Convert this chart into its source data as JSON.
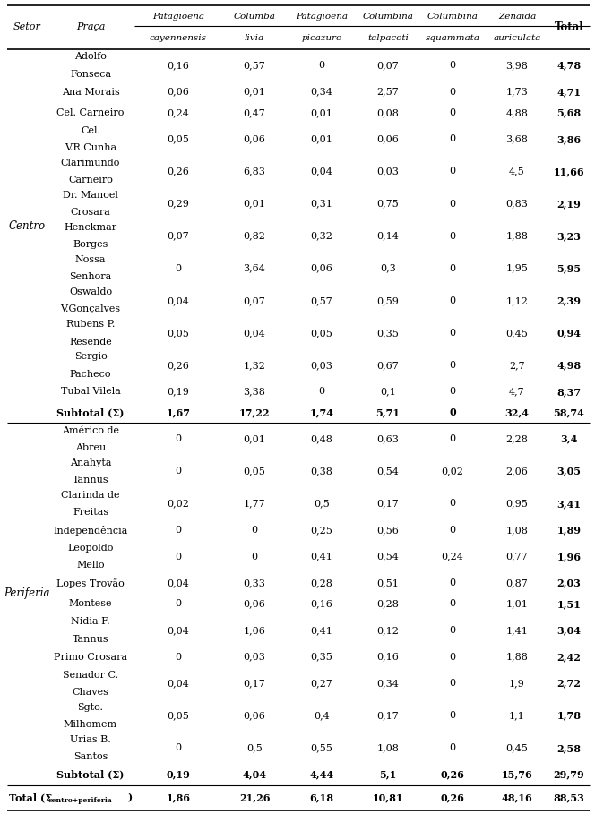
{
  "col_headers_line1": [
    "",
    "",
    "Patagioena",
    "Columba",
    "Patagioena",
    "Columbina",
    "Columbina",
    "Zenaida",
    "Total"
  ],
  "col_headers_line2": [
    "",
    "",
    "cayennensis",
    "livia",
    "picazuro",
    "talpacoti",
    "squammata",
    "auriculata",
    ""
  ],
  "col_headers_top": [
    "Setor",
    "Praça",
    "",
    "",
    "",
    "",
    "",
    "",
    ""
  ],
  "rows": [
    {
      "setor": "",
      "praca_lines": [
        "Adolfo",
        "Fonseca"
      ],
      "vals": [
        "0,16",
        "0,57",
        "0",
        "0,07",
        "0",
        "3,98",
        "4,78"
      ],
      "type": "data"
    },
    {
      "setor": "",
      "praca_lines": [
        "Ana Morais"
      ],
      "vals": [
        "0,06",
        "0,01",
        "0,34",
        "2,57",
        "0",
        "1,73",
        "4,71"
      ],
      "type": "data"
    },
    {
      "setor": "",
      "praca_lines": [
        "Cel. Carneiro"
      ],
      "vals": [
        "0,24",
        "0,47",
        "0,01",
        "0,08",
        "0",
        "4,88",
        "5,68"
      ],
      "type": "data"
    },
    {
      "setor": "",
      "praca_lines": [
        "Cel.",
        "V.R.Cunha"
      ],
      "vals": [
        "0,05",
        "0,06",
        "0,01",
        "0,06",
        "0",
        "3,68",
        "3,86"
      ],
      "type": "data"
    },
    {
      "setor": "",
      "praca_lines": [
        "Clarimundo",
        "Carneiro"
      ],
      "vals": [
        "0,26",
        "6,83",
        "0,04",
        "0,03",
        "0",
        "4,5",
        "11,66"
      ],
      "type": "data"
    },
    {
      "setor": "",
      "praca_lines": [
        "Dr. Manoel",
        "Crosara"
      ],
      "vals": [
        "0,29",
        "0,01",
        "0,31",
        "0,75",
        "0",
        "0,83",
        "2,19"
      ],
      "type": "data"
    },
    {
      "setor": "Centro",
      "praca_lines": [
        "Henckmar",
        "Borges"
      ],
      "vals": [
        "0,07",
        "0,82",
        "0,32",
        "0,14",
        "0",
        "1,88",
        "3,23"
      ],
      "type": "data"
    },
    {
      "setor": "",
      "praca_lines": [
        "Nossa",
        "Senhora"
      ],
      "vals": [
        "0",
        "3,64",
        "0,06",
        "0,3",
        "0",
        "1,95",
        "5,95"
      ],
      "type": "data"
    },
    {
      "setor": "",
      "praca_lines": [
        "Oswaldo",
        "V.Gonçalves"
      ],
      "vals": [
        "0,04",
        "0,07",
        "0,57",
        "0,59",
        "0",
        "1,12",
        "2,39"
      ],
      "type": "data"
    },
    {
      "setor": "",
      "praca_lines": [
        "Rubens P.",
        "Resende"
      ],
      "vals": [
        "0,05",
        "0,04",
        "0,05",
        "0,35",
        "0",
        "0,45",
        "0,94"
      ],
      "type": "data"
    },
    {
      "setor": "",
      "praca_lines": [
        "Sergio",
        "Pacheco"
      ],
      "vals": [
        "0,26",
        "1,32",
        "0,03",
        "0,67",
        "0",
        "2,7",
        "4,98"
      ],
      "type": "data"
    },
    {
      "setor": "",
      "praca_lines": [
        "Tubal Vilela"
      ],
      "vals": [
        "0,19",
        "3,38",
        "0",
        "0,1",
        "0",
        "4,7",
        "8,37"
      ],
      "type": "data"
    },
    {
      "setor": "",
      "praca_lines": [
        "Subtotal (Σ)"
      ],
      "vals": [
        "1,67",
        "17,22",
        "1,74",
        "5,71",
        "0",
        "32,4",
        "58,74"
      ],
      "type": "subtotal"
    },
    {
      "setor": "",
      "praca_lines": [
        "Américo de",
        "Abreu"
      ],
      "vals": [
        "0",
        "0,01",
        "0,48",
        "0,63",
        "0",
        "2,28",
        "3,4"
      ],
      "type": "data"
    },
    {
      "setor": "",
      "praca_lines": [
        "Anahyta",
        "Tannus"
      ],
      "vals": [
        "0",
        "0,05",
        "0,38",
        "0,54",
        "0,02",
        "2,06",
        "3,05"
      ],
      "type": "data"
    },
    {
      "setor": "",
      "praca_lines": [
        "Clarinda de",
        "Freitas"
      ],
      "vals": [
        "0,02",
        "1,77",
        "0,5",
        "0,17",
        "0",
        "0,95",
        "3,41"
      ],
      "type": "data"
    },
    {
      "setor": "",
      "praca_lines": [
        "Independência"
      ],
      "vals": [
        "0",
        "0",
        "0,25",
        "0,56",
        "0",
        "1,08",
        "1,89"
      ],
      "type": "data"
    },
    {
      "setor": "",
      "praca_lines": [
        "Leopoldo",
        "Mello"
      ],
      "vals": [
        "0",
        "0",
        "0,41",
        "0,54",
        "0,24",
        "0,77",
        "1,96"
      ],
      "type": "data"
    },
    {
      "setor": "Periferia",
      "praca_lines": [
        "Lopes Trovão"
      ],
      "vals": [
        "0,04",
        "0,33",
        "0,28",
        "0,51",
        "0",
        "0,87",
        "2,03"
      ],
      "type": "data"
    },
    {
      "setor": "",
      "praca_lines": [
        "Montese"
      ],
      "vals": [
        "0",
        "0,06",
        "0,16",
        "0,28",
        "0",
        "1,01",
        "1,51"
      ],
      "type": "data"
    },
    {
      "setor": "",
      "praca_lines": [
        "Nidia F.",
        "Tannus"
      ],
      "vals": [
        "0,04",
        "1,06",
        "0,41",
        "0,12",
        "0",
        "1,41",
        "3,04"
      ],
      "type": "data"
    },
    {
      "setor": "",
      "praca_lines": [
        "Primo Crosara"
      ],
      "vals": [
        "0",
        "0,03",
        "0,35",
        "0,16",
        "0",
        "1,88",
        "2,42"
      ],
      "type": "data"
    },
    {
      "setor": "",
      "praca_lines": [
        "Senador C.",
        "Chaves"
      ],
      "vals": [
        "0,04",
        "0,17",
        "0,27",
        "0,34",
        "0",
        "1,9",
        "2,72"
      ],
      "type": "data"
    },
    {
      "setor": "",
      "praca_lines": [
        "Sgto.",
        "Milhomem"
      ],
      "vals": [
        "0,05",
        "0,06",
        "0,4",
        "0,17",
        "0",
        "1,1",
        "1,78"
      ],
      "type": "data"
    },
    {
      "setor": "",
      "praca_lines": [
        "Urias B.",
        "Santos"
      ],
      "vals": [
        "0",
        "0,5",
        "0,55",
        "1,08",
        "0",
        "0,45",
        "2,58"
      ],
      "type": "data"
    },
    {
      "setor": "",
      "praca_lines": [
        "Subtotal (Σ)"
      ],
      "vals": [
        "0,19",
        "4,04",
        "4,44",
        "5,1",
        "0,26",
        "15,76",
        "29,79"
      ],
      "type": "subtotal"
    },
    {
      "setor": "",
      "praca_lines": [
        "Total (Σ",
        "centro+periferia)"
      ],
      "vals": [
        "1,86",
        "21,26",
        "6,18",
        "10,81",
        "0,26",
        "48,16",
        "88,53"
      ],
      "type": "total"
    }
  ],
  "centro_rows": [
    0,
    11
  ],
  "periferia_rows": [
    13,
    24
  ],
  "bg": "#ffffff",
  "fs_header": 8.0,
  "fs_data": 8.0,
  "fs_setor": 8.5
}
